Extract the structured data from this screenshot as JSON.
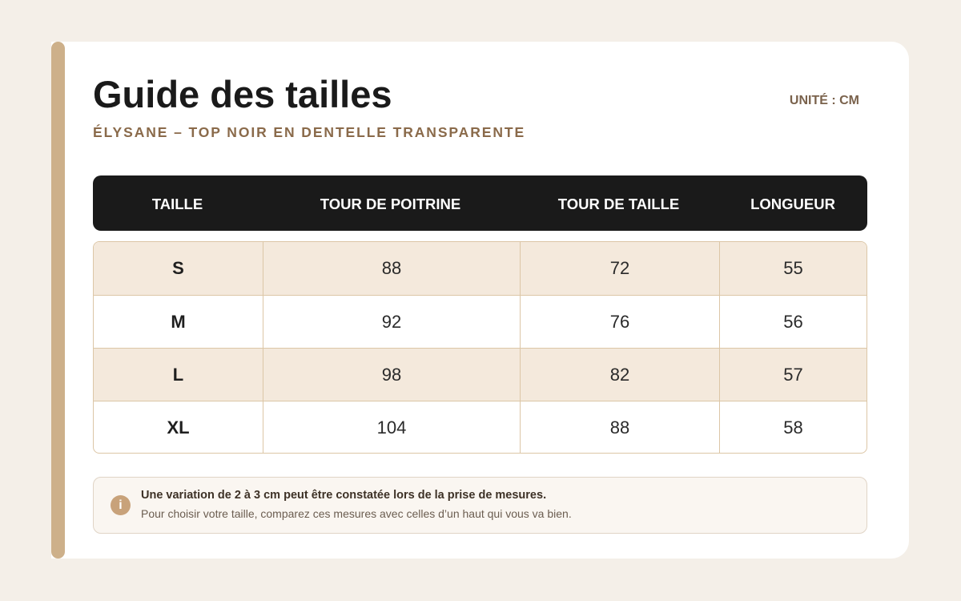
{
  "header": {
    "title": "Guide des tailles",
    "subtitle": "ÉLYSANE – TOP NOIR EN DENTELLE TRANSPARENTE",
    "unit": "UNITÉ : CM"
  },
  "table": {
    "columns": [
      "TAILLE",
      "TOUR DE POITRINE",
      "TOUR DE TAILLE",
      "LONGUEUR"
    ],
    "rows": [
      [
        "S",
        "88",
        "72",
        "55"
      ],
      [
        "M",
        "92",
        "76",
        "56"
      ],
      [
        "L",
        "98",
        "82",
        "57"
      ],
      [
        "XL",
        "104",
        "88",
        "58"
      ]
    ]
  },
  "note": {
    "icon": "info-icon",
    "icon_glyph": "i",
    "title": "Une variation de 2 à 3 cm peut être constatée lors de la prise de mesures.",
    "text": "Pour choisir votre taille, comparez ces mesures avec celles d’un haut qui vous va bien."
  },
  "colors": {
    "background": "#f4efe8",
    "card": "#ffffff",
    "accent": "#cdb08a",
    "header_bg": "#1a1a1a",
    "row_shade": "#f4e9dc",
    "subtitle": "#8a6a4a"
  }
}
